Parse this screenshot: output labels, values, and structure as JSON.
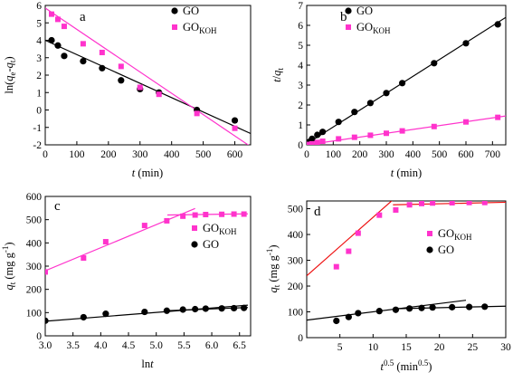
{
  "chart_data": [
    {
      "panel": "a",
      "type": "scatter",
      "xlabel": "t (min)",
      "ylabel": "ln(qe-qt)",
      "xlim": [
        0,
        650
      ],
      "ylim": [
        -2,
        6
      ],
      "xticks": [
        0,
        100,
        200,
        300,
        400,
        500,
        600
      ],
      "yticks": [
        -2,
        -1,
        0,
        1,
        2,
        3,
        4,
        5,
        6
      ],
      "legend": "top-right",
      "series": [
        {
          "name": "GO",
          "color": "#000000",
          "marker": "circle",
          "x": [
            20,
            40,
            60,
            120,
            180,
            240,
            300,
            360,
            480,
            600
          ],
          "y": [
            4.0,
            3.7,
            3.1,
            2.8,
            2.4,
            1.7,
            1.2,
            1.0,
            0.0,
            -0.6
          ],
          "fit": [
            [
              0,
              4.0
            ],
            [
              650,
              -1.35
            ]
          ],
          "fit_color": "#000000"
        },
        {
          "name": "GO_KOH",
          "color": "#ff33cc",
          "marker": "square",
          "x": [
            20,
            40,
            60,
            120,
            180,
            240,
            300,
            360,
            480,
            600
          ],
          "y": [
            5.5,
            5.2,
            4.8,
            3.8,
            3.3,
            2.5,
            1.3,
            0.9,
            -0.2,
            -1.05
          ],
          "fit": [
            [
              0,
              5.85
            ],
            [
              650,
              -2.1
            ]
          ],
          "fit_color": "#ff33cc"
        }
      ]
    },
    {
      "panel": "b",
      "type": "scatter",
      "xlabel": "t (min)",
      "ylabel": "t/qt",
      "xlim": [
        0,
        750
      ],
      "ylim": [
        0,
        7
      ],
      "xticks": [
        0,
        100,
        200,
        300,
        400,
        500,
        600,
        700
      ],
      "yticks": [
        0,
        1,
        2,
        3,
        4,
        5,
        6,
        7
      ],
      "legend": "top-left",
      "series": [
        {
          "name": "GO",
          "color": "#000000",
          "marker": "circle",
          "x": [
            10,
            20,
            40,
            60,
            120,
            180,
            240,
            300,
            360,
            480,
            600,
            720
          ],
          "y": [
            0.15,
            0.3,
            0.5,
            0.65,
            1.15,
            1.65,
            2.1,
            2.6,
            3.1,
            4.1,
            5.1,
            6.05
          ],
          "fit": [
            [
              0,
              0.05
            ],
            [
              750,
              6.4
            ]
          ],
          "fit_color": "#000000"
        },
        {
          "name": "GO_KOH",
          "color": "#ff33cc",
          "marker": "square",
          "x": [
            10,
            20,
            40,
            60,
            120,
            180,
            240,
            300,
            360,
            480,
            600,
            720
          ],
          "y": [
            0.02,
            0.05,
            0.12,
            0.18,
            0.3,
            0.38,
            0.48,
            0.58,
            0.7,
            0.92,
            1.15,
            1.38
          ],
          "fit": [
            [
              0,
              0.0
            ],
            [
              750,
              1.45
            ]
          ],
          "fit_color": "#ff33cc"
        }
      ]
    },
    {
      "panel": "c",
      "type": "scatter",
      "xlabel": "lnt",
      "ylabel": "qt (mg g-1)",
      "xlim": [
        3.0,
        6.7
      ],
      "ylim": [
        0,
        600
      ],
      "xticks": [
        3.0,
        3.5,
        4.0,
        4.5,
        5.0,
        5.5,
        6.0,
        6.5
      ],
      "yticks": [
        0,
        100,
        200,
        300,
        400,
        500,
        600
      ],
      "legend": "middle-right",
      "series": [
        {
          "name": "GO_KOH",
          "color": "#ff33cc",
          "marker": "square",
          "x": [
            3.0,
            3.69,
            4.09,
            4.79,
            5.19,
            5.48,
            5.7,
            5.89,
            6.18,
            6.4,
            6.58
          ],
          "y": [
            275,
            335,
            405,
            475,
            495,
            515,
            520,
            522,
            523,
            524,
            524
          ],
          "fit": [
            [
              2.95,
              275
            ],
            [
              5.7,
              548
            ]
          ],
          "fit2": [
            [
              5.2,
              520
            ],
            [
              6.65,
              525
            ]
          ],
          "fit_color": "#ff33cc"
        },
        {
          "name": "GO",
          "color": "#000000",
          "marker": "circle",
          "x": [
            3.0,
            3.69,
            4.09,
            4.79,
            5.19,
            5.48,
            5.7,
            5.89,
            6.18,
            6.4,
            6.58
          ],
          "y": [
            65,
            80,
            95,
            103,
            108,
            113,
            115,
            117,
            118,
            119,
            120
          ],
          "fit": [
            [
              2.95,
              62
            ],
            [
              6.65,
              132
            ]
          ],
          "fit2": [
            [
              5.2,
              108
            ],
            [
              6.65,
              122
            ]
          ],
          "fit_color": "#000000"
        }
      ]
    },
    {
      "panel": "d",
      "type": "scatter",
      "xlabel": "t0.5 (min0.5)",
      "ylabel": "qt (mg g-1)",
      "xlim": [
        0,
        30
      ],
      "ylim": [
        0,
        530
      ],
      "xticks": [
        5,
        10,
        15,
        20,
        25,
        30
      ],
      "yticks": [
        0,
        100,
        200,
        300,
        400,
        500
      ],
      "legend": "middle-right",
      "series": [
        {
          "name": "GO_KOH",
          "color": "#ff33cc",
          "marker": "square",
          "x": [
            4.47,
            6.32,
            7.75,
            10.95,
            13.42,
            15.49,
            17.32,
            18.97,
            21.91,
            24.49,
            26.83
          ],
          "y": [
            275,
            335,
            405,
            475,
            495,
            515,
            520,
            522,
            523,
            524,
            524
          ],
          "fit": [
            [
              0,
              240
            ],
            [
              15,
              580
            ]
          ],
          "fit2": [
            [
              13,
              515
            ],
            [
              30,
              525
            ]
          ],
          "fit_color": "#ee1111"
        },
        {
          "name": "GO",
          "color": "#000000",
          "marker": "circle",
          "x": [
            4.47,
            6.32,
            7.75,
            10.95,
            13.42,
            15.49,
            17.32,
            18.97,
            21.91,
            24.49,
            26.83
          ],
          "y": [
            65,
            80,
            95,
            103,
            108,
            113,
            115,
            117,
            118,
            119,
            120
          ],
          "fit": [
            [
              0,
              68
            ],
            [
              24,
              145
            ]
          ],
          "fit2": [
            [
              13,
              112
            ],
            [
              30,
              122
            ]
          ],
          "fit_color": "#000000"
        }
      ]
    }
  ]
}
